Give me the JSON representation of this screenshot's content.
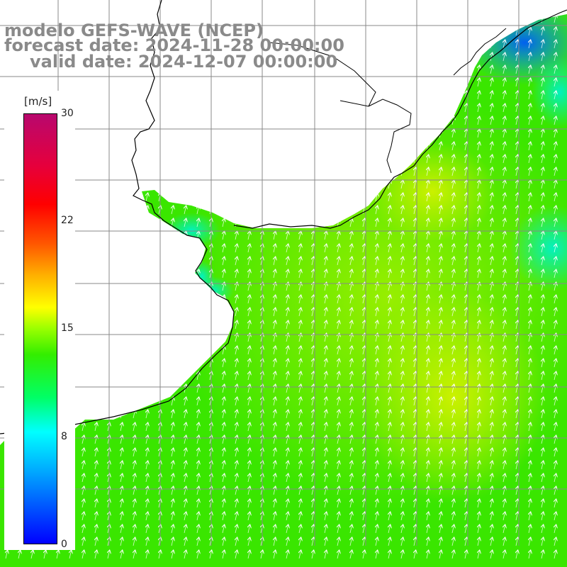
{
  "title": {
    "model": "modelo GEFS-WAVE (NCEP)",
    "forecast": "forecast date: 2024-11-28 00:00:00",
    "valid": "valid date: 2024-12-07 00:00:00"
  },
  "colorbar": {
    "unit": "[m/s]",
    "ticks": [
      "30",
      "22",
      "15",
      "8",
      "0"
    ],
    "range": [
      0,
      30
    ]
  },
  "colors": {
    "land": "#ffffff",
    "grid": "#888888",
    "coast": "#000000",
    "arrow": "#ffffff"
  },
  "map": {
    "field": "wind speed",
    "prevailing_direction": "north-northeast",
    "max_region": "east-centre, yellow-green (~15 m/s)",
    "min_region": "northeast corner, blue (~3-6 m/s)"
  }
}
